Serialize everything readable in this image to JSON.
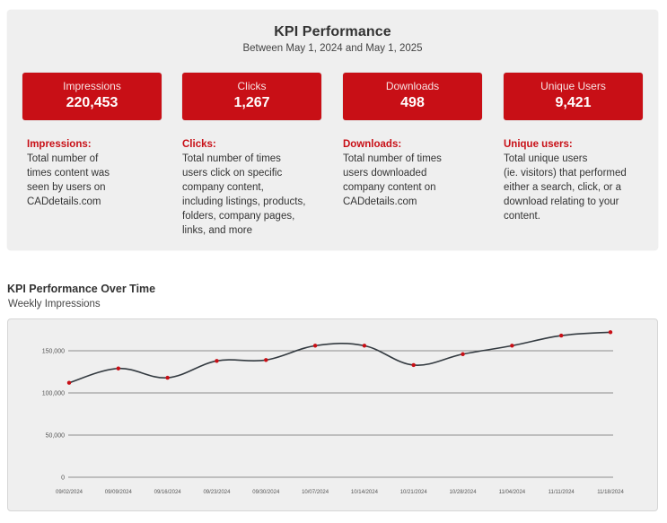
{
  "header": {
    "title": "KPI Performance",
    "subtitle": "Between May 1, 2024 and May 1, 2025"
  },
  "kpis": [
    {
      "label": "Impressions",
      "value": "220,453"
    },
    {
      "label": "Clicks",
      "value": "1,267"
    },
    {
      "label": "Downloads",
      "value": "498"
    },
    {
      "label": "Unique Users",
      "value": "9,421"
    }
  ],
  "definitions": [
    {
      "term": "Impressions:",
      "lines": [
        "Total number of",
        "times content was",
        "seen by users on",
        "CADdetails.com"
      ]
    },
    {
      "term": "Clicks:",
      "lines": [
        "Total number of times",
        "users click on specific",
        "company content,",
        "including listings, products,",
        "folders, company pages,",
        "links, and more"
      ]
    },
    {
      "term": "Downloads:",
      "lines": [
        "Total number of times",
        "users downloaded",
        "company content on",
        "CADdetails.com"
      ]
    },
    {
      "term": "Unique users:",
      "lines": [
        "Total unique users",
        "(ie. visitors) that performed",
        "either a search, click, or a",
        "download relating to your",
        "content."
      ]
    }
  ],
  "colors": {
    "accent": "#c80f16",
    "panel": "#efefef",
    "line": "#333a40",
    "grid": "#8c8c8c"
  },
  "section": {
    "title": "KPI Performance Over Time",
    "subtitle": "Weekly Impressions"
  },
  "chart_data": {
    "type": "line",
    "title": "KPI Performance Over Time",
    "subtitle": "Weekly Impressions",
    "xlabel": "",
    "ylabel": "",
    "x": [
      "09/02/2024",
      "09/09/2024",
      "09/16/2024",
      "09/23/2024",
      "09/30/2024",
      "10/07/2024",
      "10/14/2024",
      "10/21/2024",
      "10/28/2024",
      "11/04/2024",
      "11/11/2024",
      "11/18/2024"
    ],
    "series": [
      {
        "name": "Impressions",
        "values": [
          112000,
          129000,
          118000,
          138000,
          139000,
          156000,
          156000,
          133000,
          146000,
          156000,
          168000,
          172000
        ]
      }
    ],
    "ylim": [
      0,
      180000
    ],
    "yticks": [
      0,
      50000,
      100000,
      150000
    ],
    "ytick_labels": [
      "0",
      "50,000",
      "100,000",
      "150,000"
    ],
    "grid": true,
    "smooth": true,
    "legend": "none"
  }
}
